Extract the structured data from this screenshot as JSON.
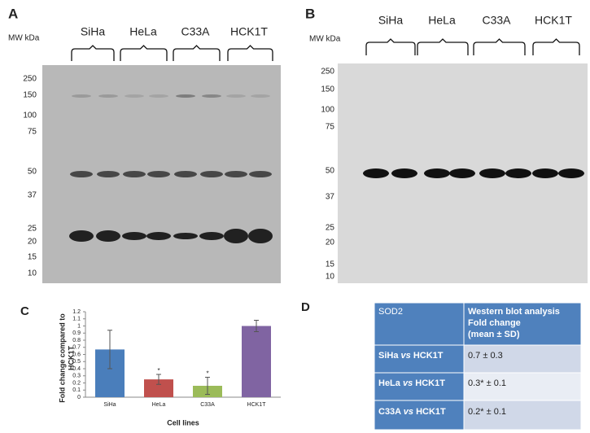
{
  "panels": {
    "a": {
      "label": "A",
      "mw_label": "MW kDa",
      "lanes": [
        "SiHa",
        "HeLa",
        "C33A",
        "HCK1T"
      ],
      "markers": [
        250,
        150,
        100,
        75,
        50,
        37,
        25,
        20,
        15,
        10
      ]
    },
    "b": {
      "label": "B",
      "mw_label": "MW kDa",
      "lanes": [
        "SiHa",
        "HeLa",
        "C33A",
        "HCK1T"
      ],
      "markers": [
        250,
        150,
        100,
        75,
        50,
        37,
        25,
        20,
        15,
        10
      ]
    },
    "c": {
      "label": "C"
    },
    "d": {
      "label": "D"
    }
  },
  "chart_data": {
    "type": "bar",
    "categories": [
      "SiHa",
      "HeLa",
      "C33A",
      "HCK1T"
    ],
    "values": [
      0.67,
      0.25,
      0.16,
      1.0
    ],
    "errors": [
      0.27,
      0.07,
      0.12,
      0.08
    ],
    "colors": [
      "#4a7ebb",
      "#c0504d",
      "#9bbb59",
      "#8064a2"
    ],
    "significance": [
      null,
      "*",
      "*",
      null
    ],
    "y_label": [
      "Fold change compared to",
      "HCK1T"
    ],
    "x_label": "Cell lines",
    "ylim": [
      0,
      1.2
    ],
    "yticks": [
      0,
      0.1,
      0.2,
      0.3,
      0.4,
      0.5,
      0.6,
      0.7,
      0.8,
      0.9,
      1,
      1.1,
      1.2
    ]
  },
  "table": {
    "header": [
      "SOD2",
      [
        "Western blot analysis",
        "Fold change",
        "(mean ± SD)"
      ]
    ],
    "rows": [
      [
        [
          "SiHa",
          "vs",
          "HCK1T"
        ],
        "0.7 ± 0.3"
      ],
      [
        [
          "HeLa",
          "vs",
          "HCK1T"
        ],
        "0.3* ± 0.1"
      ],
      [
        [
          "C33A",
          "vs",
          "HCK1T"
        ],
        "0.2* ± 0.1"
      ]
    ]
  }
}
